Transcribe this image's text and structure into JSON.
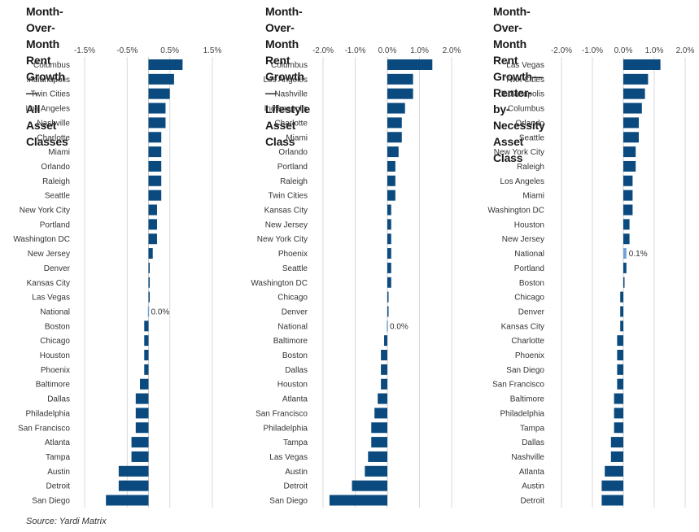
{
  "colors": {
    "bar": "#0b4a7e",
    "highlight": "#6fa3d6",
    "grid": "#d9d9d9"
  },
  "source": "Source: Yardi Matrix",
  "chart_data": [
    {
      "type": "bar",
      "orientation": "horizontal",
      "title": "Month-Over-Month Rent Growth—\nAll Asset Classes",
      "xlim": [
        -1.5,
        1.5
      ],
      "ticks": [
        -1.5,
        -0.5,
        0.5,
        1.5
      ],
      "tick_labels": [
        "-1.5%",
        "-0.5%",
        "0.5%",
        "1.5%"
      ],
      "highlight": "National",
      "highlight_label": "0.0%",
      "categories": [
        "Columbus",
        "Indianapolis",
        "Twin Cities",
        "Los Angeles",
        "Nashville",
        "Charlotte",
        "Miami",
        "Orlando",
        "Raleigh",
        "Seattle",
        "New York City",
        "Portland",
        "Washington DC",
        "New Jersey",
        "Denver",
        "Kansas City",
        "Las Vegas",
        "National",
        "Boston",
        "Chicago",
        "Houston",
        "Phoenix",
        "Baltimore",
        "Dallas",
        "Philadelphia",
        "San Francisco",
        "Atlanta",
        "Tampa",
        "Austin",
        "Detroit",
        "San Diego"
      ],
      "values": [
        0.8,
        0.6,
        0.5,
        0.4,
        0.4,
        0.3,
        0.3,
        0.3,
        0.3,
        0.3,
        0.2,
        0.2,
        0.2,
        0.1,
        0.0,
        0.0,
        0.0,
        0.0,
        -0.1,
        -0.1,
        -0.1,
        -0.1,
        -0.2,
        -0.3,
        -0.3,
        -0.3,
        -0.4,
        -0.4,
        -0.7,
        -0.7,
        -1.0
      ]
    },
    {
      "type": "bar",
      "orientation": "horizontal",
      "title": "Month-Over-Month Rent Growth—\nLifestyle Asset Class",
      "xlim": [
        -2.0,
        2.0
      ],
      "ticks": [
        -2.0,
        -1.0,
        0.0,
        1.0,
        2.0
      ],
      "tick_labels": [
        "-2.0%",
        "-1.0%",
        "0.0%",
        "1.0%",
        "2.0%"
      ],
      "highlight": "National",
      "highlight_label": "0.0%",
      "categories": [
        "Columbus",
        "Los Angeles",
        "Nashville",
        "Indianapolis",
        "Charlotte",
        "Miami",
        "Orlando",
        "Portland",
        "Raleigh",
        "Twin Cities",
        "Kansas City",
        "New Jersey",
        "New York City",
        "Phoenix",
        "Seattle",
        "Washington DC",
        "Chicago",
        "Denver",
        "National",
        "Baltimore",
        "Boston",
        "Dallas",
        "Houston",
        "Atlanta",
        "San Francisco",
        "Philadelphia",
        "Tampa",
        "Las Vegas",
        "Austin",
        "Detroit",
        "San Diego"
      ],
      "values": [
        1.4,
        0.8,
        0.8,
        0.55,
        0.45,
        0.45,
        0.35,
        0.25,
        0.25,
        0.25,
        0.12,
        0.12,
        0.12,
        0.12,
        0.12,
        0.12,
        0.0,
        0.0,
        0.0,
        -0.1,
        -0.2,
        -0.2,
        -0.2,
        -0.3,
        -0.4,
        -0.5,
        -0.5,
        -0.6,
        -0.7,
        -1.1,
        -1.8
      ]
    },
    {
      "type": "bar",
      "orientation": "horizontal",
      "title": "Month-Over-Month Rent Growth—\nRenter-by-Necessity Asset Class",
      "xlim": [
        -2.0,
        2.0
      ],
      "ticks": [
        -2.0,
        -1.0,
        0.0,
        1.0,
        2.0
      ],
      "tick_labels": [
        "-2.0%",
        "-1.0%",
        "0.0%",
        "1.0%",
        "2.0%"
      ],
      "highlight": "National",
      "highlight_label": "0.1%",
      "categories": [
        "Las Vegas",
        "Twin Cities",
        "Indianapolis",
        "Columbus",
        "Orlando",
        "Seattle",
        "New York City",
        "Raleigh",
        "Los Angeles",
        "Miami",
        "Washington DC",
        "Houston",
        "New Jersey",
        "National",
        "Portland",
        "Boston",
        "Chicago",
        "Denver",
        "Kansas City",
        "Charlotte",
        "Phoenix",
        "San Diego",
        "San Francisco",
        "Baltimore",
        "Philadelphia",
        "Tampa",
        "Dallas",
        "Nashville",
        "Atlanta",
        "Austin",
        "Detroit"
      ],
      "values": [
        1.2,
        0.8,
        0.7,
        0.6,
        0.5,
        0.5,
        0.4,
        0.4,
        0.3,
        0.3,
        0.3,
        0.2,
        0.2,
        0.1,
        0.1,
        0.0,
        -0.1,
        -0.1,
        -0.1,
        -0.2,
        -0.2,
        -0.2,
        -0.2,
        -0.3,
        -0.3,
        -0.3,
        -0.4,
        -0.4,
        -0.6,
        -0.7,
        -0.7
      ]
    }
  ]
}
